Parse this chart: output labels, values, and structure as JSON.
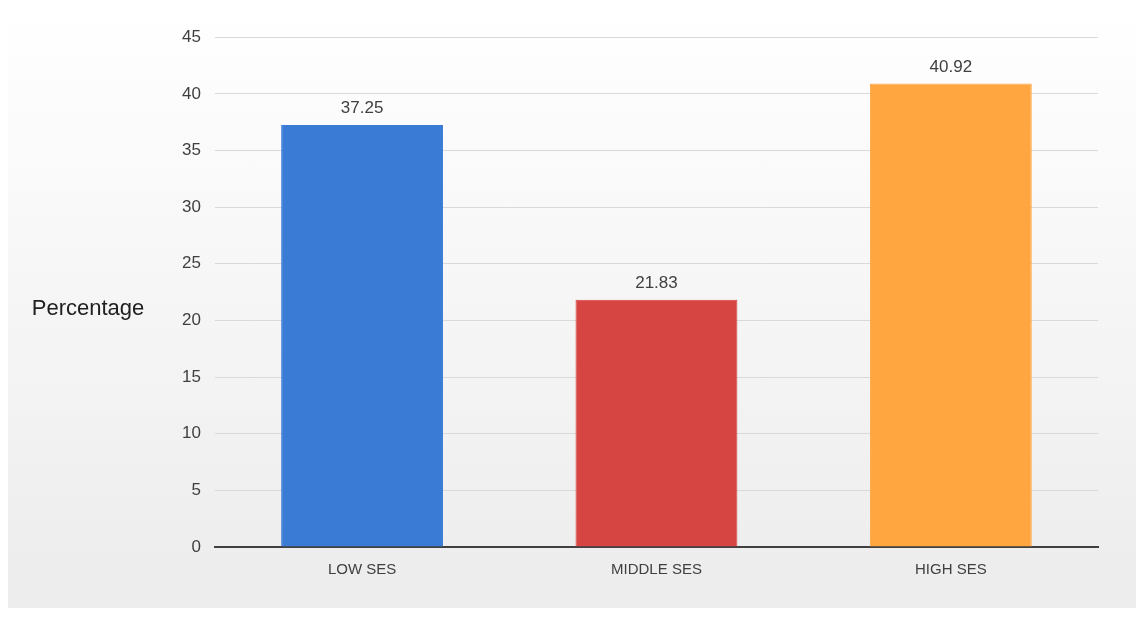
{
  "chart_data": {
    "type": "bar",
    "ylabel": "Percentage",
    "categories": [
      "LOW SES",
      "MIDDLE SES",
      "HIGH SES"
    ],
    "values": [
      37.25,
      21.83,
      40.92
    ],
    "colors": [
      "#3a7bd5",
      "#d64541",
      "#ffa640"
    ],
    "ylim": [
      0,
      45
    ],
    "yticks": [
      0,
      5,
      10,
      15,
      20,
      25,
      30,
      35,
      40,
      45
    ],
    "grid": "y",
    "data_labels": true,
    "legend": false
  }
}
